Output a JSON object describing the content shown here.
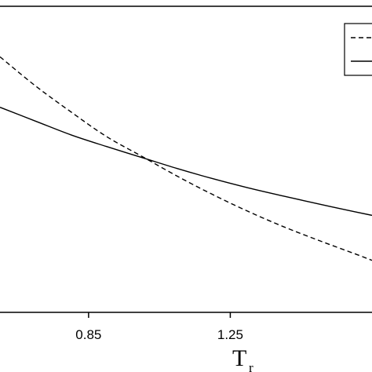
{
  "chart_data": {
    "type": "line",
    "xlabel_main": "T",
    "xlabel_sub": "r",
    "x_ticks": [
      0.85,
      1.25
    ],
    "x_tick_labels": [
      "0.85",
      "1.25"
    ],
    "xlim": [
      0.6,
      1.65
    ],
    "ylim": [
      0,
      1
    ],
    "grid": false,
    "legend_position": "top-right",
    "series": [
      {
        "style": "dashed",
        "x": [
          0.6,
          0.7,
          0.8,
          0.9,
          1.0,
          1.1,
          1.2,
          1.3,
          1.4,
          1.5,
          1.6,
          1.65
        ],
        "y": [
          0.835,
          0.74,
          0.655,
          0.575,
          0.51,
          0.445,
          0.385,
          0.33,
          0.28,
          0.235,
          0.192,
          0.17
        ]
      },
      {
        "style": "solid",
        "x": [
          0.6,
          0.7,
          0.8,
          0.9,
          1.0,
          1.1,
          1.2,
          1.3,
          1.4,
          1.5,
          1.6,
          1.65
        ],
        "y": [
          0.67,
          0.625,
          0.58,
          0.542,
          0.506,
          0.47,
          0.437,
          0.407,
          0.38,
          0.354,
          0.329,
          0.317
        ]
      }
    ]
  }
}
